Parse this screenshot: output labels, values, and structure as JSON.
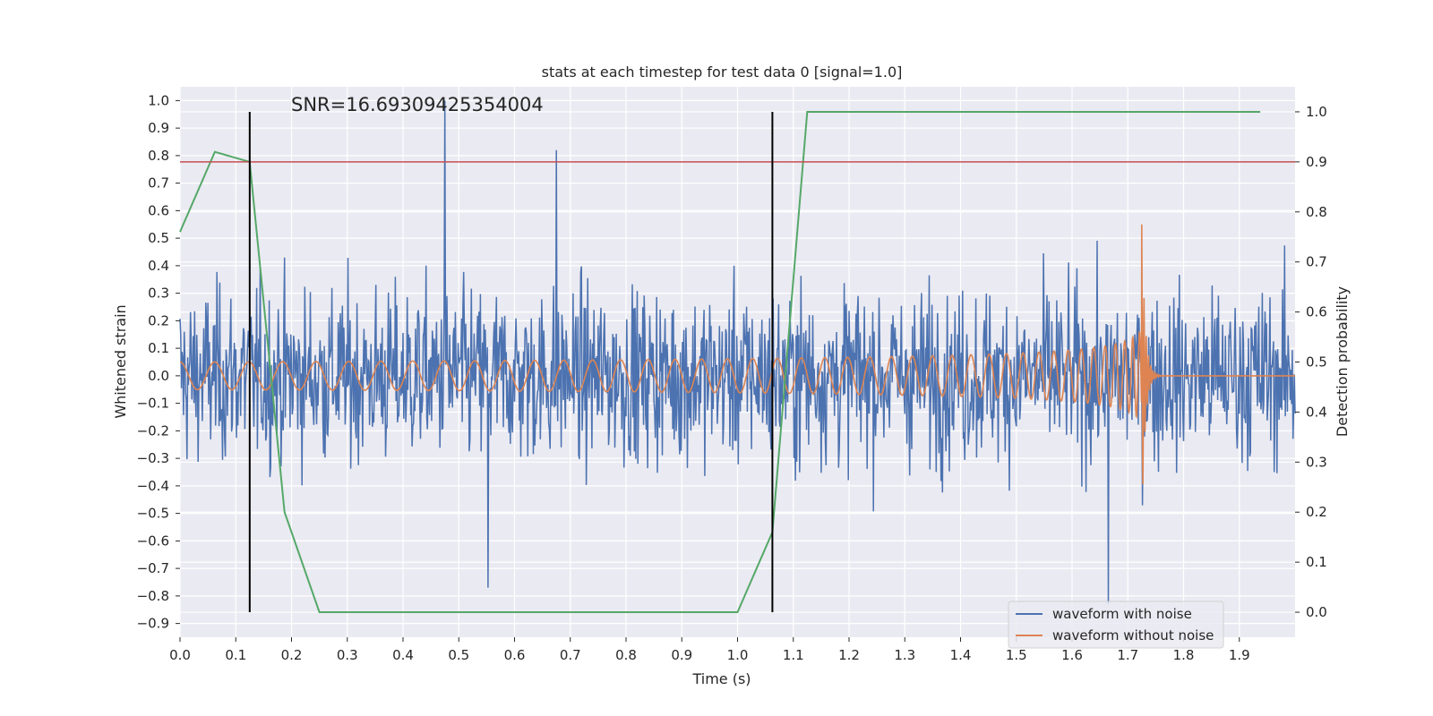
{
  "chart_data": {
    "type": "line",
    "title": "stats at each timestep for test data 0 [signal=1.0]",
    "xlabel": "Time (s)",
    "ylabel_left": "Whitened strain",
    "ylabel_right": "Detection probability",
    "annotation": "SNR=16.69309425354004",
    "xlim": [
      0.0,
      2.0
    ],
    "ylim_left": [
      -0.95,
      1.05
    ],
    "ylim_right": [
      -0.05,
      1.05
    ],
    "x_ticks": [
      0.0,
      0.1,
      0.2,
      0.3,
      0.4,
      0.5,
      0.6,
      0.7,
      0.8,
      0.9,
      1.0,
      1.1,
      1.2,
      1.3,
      1.4,
      1.5,
      1.6,
      1.7,
      1.8,
      1.9
    ],
    "y_ticks_left": [
      -0.9,
      -0.8,
      -0.7,
      -0.6,
      -0.5,
      -0.4,
      -0.3,
      -0.2,
      -0.1,
      0.0,
      0.1,
      0.2,
      0.3,
      0.4,
      0.5,
      0.6,
      0.7,
      0.8,
      0.9,
      1.0
    ],
    "y_ticks_right": [
      0.0,
      0.1,
      0.2,
      0.3,
      0.4,
      0.5,
      0.6,
      0.7,
      0.8,
      0.9,
      1.0
    ],
    "grid": true,
    "legend_position": "lower-right",
    "colors": {
      "noise": "#4c72b0",
      "clean": "#dd8452",
      "probability": "#55a868",
      "threshold": "#c44e52",
      "markers": "#000000",
      "axes_bg": "#eaeaf2",
      "grid": "#ffffff"
    },
    "series": [
      {
        "name": "waveform with noise",
        "color": "#4c72b0",
        "description": "whitened strain with noise, roughly within -0.85 to 1.0, peaks 1.0 at t=0.47 and 0.82 at t=0.67"
      },
      {
        "name": "waveform without noise",
        "color": "#dd8452",
        "description": "chirp signal, amplitude ~0.06 near start growing to ~0.6 at merger t~1.725, then ringdown to 0"
      },
      {
        "name": "detection probability",
        "axis": "right",
        "color": "#55a868",
        "x": [
          0.0,
          0.0625,
          0.125,
          0.1875,
          0.25,
          1.0,
          1.0625,
          1.125,
          1.9375
        ],
        "y": [
          0.76,
          0.92,
          0.9,
          0.2,
          0.0,
          0.0,
          0.16,
          1.0,
          1.0
        ]
      }
    ],
    "threshold_right": 0.9,
    "vertical_markers": [
      0.125,
      1.0625
    ],
    "merger_time": 1.725
  }
}
